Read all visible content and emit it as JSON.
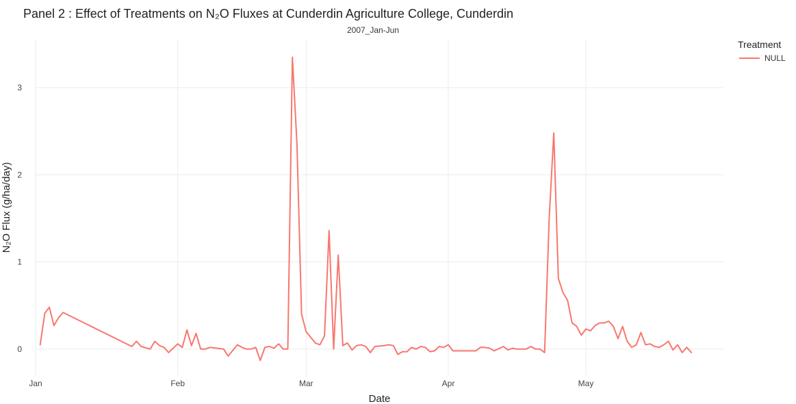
{
  "chart_data": {
    "type": "line",
    "title": "Panel 2 : Effect of Treatments on N₂O Fluxes at Cunderdin Agriculture College, Cunderdin",
    "subtitle": "2007_Jan-Jun",
    "xlabel": "Date",
    "ylabel": "N₂O Flux (g/ha/day)",
    "xlim": [
      "2007-01-01",
      "2007-05-31"
    ],
    "ylim": [
      -0.3,
      3.55
    ],
    "x_ticks": [
      {
        "date": "2007-01-01",
        "label": "Jan"
      },
      {
        "date": "2007-02-01",
        "label": "Feb"
      },
      {
        "date": "2007-03-01",
        "label": "Mar"
      },
      {
        "date": "2007-04-01",
        "label": "Apr"
      },
      {
        "date": "2007-05-01",
        "label": "May"
      }
    ],
    "y_ticks": [
      0,
      1,
      2,
      3
    ],
    "grid": true,
    "legend": {
      "title": "Treatment",
      "placement": "right"
    },
    "series": [
      {
        "name": "NULL",
        "color": "#f8766d",
        "points": [
          [
            "2007-01-02",
            0.05
          ],
          [
            "2007-01-03",
            0.41
          ],
          [
            "2007-01-04",
            0.48
          ],
          [
            "2007-01-05",
            0.27
          ],
          [
            "2007-01-06",
            0.36
          ],
          [
            "2007-01-07",
            0.42
          ],
          [
            "2007-01-22",
            0.03
          ],
          [
            "2007-01-23",
            0.09
          ],
          [
            "2007-01-24",
            0.03
          ],
          [
            "2007-01-26",
            0.0
          ],
          [
            "2007-01-27",
            0.09
          ],
          [
            "2007-01-28",
            0.04
          ],
          [
            "2007-01-29",
            0.02
          ],
          [
            "2007-01-30",
            -0.04
          ],
          [
            "2007-02-01",
            0.06
          ],
          [
            "2007-02-02",
            0.02
          ],
          [
            "2007-02-03",
            0.22
          ],
          [
            "2007-02-04",
            0.04
          ],
          [
            "2007-02-05",
            0.18
          ],
          [
            "2007-02-06",
            0.0
          ],
          [
            "2007-02-07",
            0.0
          ],
          [
            "2007-02-08",
            0.02
          ],
          [
            "2007-02-11",
            0.0
          ],
          [
            "2007-02-12",
            -0.08
          ],
          [
            "2007-02-14",
            0.05
          ],
          [
            "2007-02-15",
            0.02
          ],
          [
            "2007-02-16",
            0.0
          ],
          [
            "2007-02-17",
            0.0
          ],
          [
            "2007-02-18",
            0.02
          ],
          [
            "2007-02-19",
            -0.13
          ],
          [
            "2007-02-20",
            0.02
          ],
          [
            "2007-02-21",
            0.03
          ],
          [
            "2007-02-22",
            0.01
          ],
          [
            "2007-02-23",
            0.06
          ],
          [
            "2007-02-24",
            0.0
          ],
          [
            "2007-02-25",
            0.0
          ],
          [
            "2007-02-26",
            3.35
          ],
          [
            "2007-02-27",
            2.35
          ],
          [
            "2007-02-28",
            0.4
          ],
          [
            "2007-03-01",
            0.2
          ],
          [
            "2007-03-03",
            0.07
          ],
          [
            "2007-03-04",
            0.05
          ],
          [
            "2007-03-05",
            0.15
          ],
          [
            "2007-03-06",
            1.36
          ],
          [
            "2007-03-07",
            0.0
          ],
          [
            "2007-03-08",
            1.08
          ],
          [
            "2007-03-09",
            0.04
          ],
          [
            "2007-03-10",
            0.07
          ],
          [
            "2007-03-11",
            -0.01
          ],
          [
            "2007-03-12",
            0.04
          ],
          [
            "2007-03-13",
            0.05
          ],
          [
            "2007-03-14",
            0.03
          ],
          [
            "2007-03-15",
            -0.04
          ],
          [
            "2007-03-16",
            0.03
          ],
          [
            "2007-03-18",
            0.04
          ],
          [
            "2007-03-19",
            0.05
          ],
          [
            "2007-03-20",
            0.04
          ],
          [
            "2007-03-21",
            -0.06
          ],
          [
            "2007-03-22",
            -0.03
          ],
          [
            "2007-03-23",
            -0.03
          ],
          [
            "2007-03-24",
            0.02
          ],
          [
            "2007-03-25",
            0.0
          ],
          [
            "2007-03-26",
            0.03
          ],
          [
            "2007-03-27",
            0.02
          ],
          [
            "2007-03-28",
            -0.03
          ],
          [
            "2007-03-29",
            -0.02
          ],
          [
            "2007-03-30",
            0.03
          ],
          [
            "2007-03-31",
            0.02
          ],
          [
            "2007-04-01",
            0.05
          ],
          [
            "2007-04-02",
            -0.02
          ],
          [
            "2007-04-06",
            -0.02
          ],
          [
            "2007-04-07",
            -0.02
          ],
          [
            "2007-04-08",
            0.02
          ],
          [
            "2007-04-09",
            0.02
          ],
          [
            "2007-04-10",
            0.01
          ],
          [
            "2007-04-11",
            -0.02
          ],
          [
            "2007-04-13",
            0.03
          ],
          [
            "2007-04-14",
            -0.01
          ],
          [
            "2007-04-15",
            0.01
          ],
          [
            "2007-04-16",
            0.0
          ],
          [
            "2007-04-18",
            0.0
          ],
          [
            "2007-04-19",
            0.03
          ],
          [
            "2007-04-20",
            0.0
          ],
          [
            "2007-04-21",
            0.0
          ],
          [
            "2007-04-22",
            -0.04
          ],
          [
            "2007-04-23",
            1.5
          ],
          [
            "2007-04-24",
            2.48
          ],
          [
            "2007-04-25",
            0.81
          ],
          [
            "2007-04-26",
            0.65
          ],
          [
            "2007-04-27",
            0.56
          ],
          [
            "2007-04-28",
            0.3
          ],
          [
            "2007-04-29",
            0.26
          ],
          [
            "2007-04-30",
            0.16
          ],
          [
            "2007-05-01",
            0.23
          ],
          [
            "2007-05-02",
            0.21
          ],
          [
            "2007-05-03",
            0.27
          ],
          [
            "2007-05-04",
            0.3
          ],
          [
            "2007-05-05",
            0.3
          ],
          [
            "2007-05-06",
            0.32
          ],
          [
            "2007-05-07",
            0.26
          ],
          [
            "2007-05-08",
            0.12
          ],
          [
            "2007-05-09",
            0.26
          ],
          [
            "2007-05-10",
            0.09
          ],
          [
            "2007-05-11",
            0.02
          ],
          [
            "2007-05-12",
            0.05
          ],
          [
            "2007-05-13",
            0.19
          ],
          [
            "2007-05-14",
            0.05
          ],
          [
            "2007-05-15",
            0.06
          ],
          [
            "2007-05-16",
            0.03
          ],
          [
            "2007-05-17",
            0.02
          ],
          [
            "2007-05-18",
            0.05
          ],
          [
            "2007-05-19",
            0.09
          ],
          [
            "2007-05-20",
            -0.01
          ],
          [
            "2007-05-21",
            0.05
          ],
          [
            "2007-05-22",
            -0.04
          ],
          [
            "2007-05-23",
            0.02
          ],
          [
            "2007-05-24",
            -0.04
          ]
        ]
      }
    ]
  }
}
